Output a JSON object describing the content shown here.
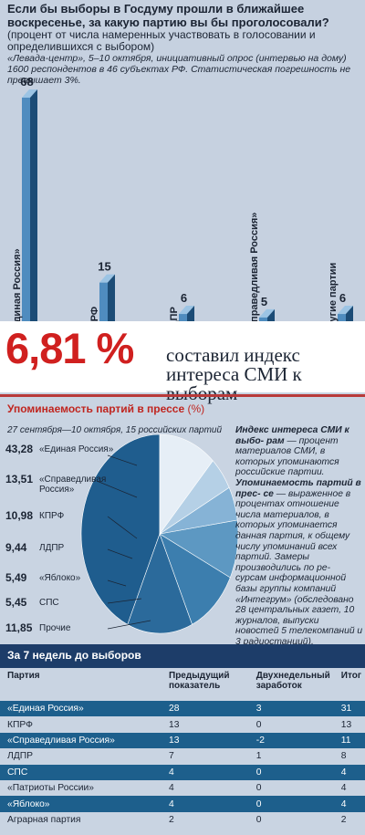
{
  "poll": {
    "question": "Если бы выборы в Госдуму прошли в ближайшее воскресенье, за какую партию вы бы проголосовали?",
    "subtitle": "(процент от числа намеренных участвовать в голосовании и определившихся с выбором)",
    "note": "«Левада-центр», 5–10 октября, инициативный опрос (интервью на дому) 1600 респондентов в 46 субъектах РФ. Статистическая погрешность не превышает 3%."
  },
  "chart_data": [
    {
      "type": "bar",
      "categories": [
        "«Единая Россия»",
        "КПРФ",
        "ЛДПР",
        "«Справедливая Россия»",
        "Другие партии"
      ],
      "values": [
        68,
        15,
        6,
        5,
        6
      ],
      "title": "Если бы выборы в Госдуму прошли в ближайшее воскресенье, за какую партию вы бы проголосовали?"
    },
    {
      "type": "pie",
      "title": "Упоминаемость партий в прессе",
      "unit": "(%)",
      "subtitle": "27 сентября—10 октября, 15 российских партий",
      "categories": [
        "«Единая Россия»",
        "«Справедливая Россия»",
        "КПРФ",
        "ЛДПР",
        "«Яблоко»",
        "СПС",
        "Прочие"
      ],
      "values_text": [
        "43,28",
        "13,51",
        "10,98",
        "9,44",
        "5,49",
        "5,45",
        "11,85"
      ],
      "values": [
        43.28,
        13.51,
        10.98,
        9.44,
        5.49,
        5.45,
        11.85
      ],
      "colors": [
        "#1f5d8e",
        "#2b6a9b",
        "#3c7eae",
        "#5d98c2",
        "#86b3d6",
        "#b5d0e6",
        "#e6eef6"
      ]
    },
    {
      "type": "table",
      "title": "За 7 недель до выборов",
      "columns": [
        "Партия",
        "Предыдущий показатель",
        "Двухнедельный заработок",
        "Итог"
      ],
      "rows": [
        [
          "«Единая Россия»",
          "28",
          "3",
          "31"
        ],
        [
          "КПРФ",
          "13",
          "0",
          "13"
        ],
        [
          "«Справедливая Россия»",
          "13",
          "-2",
          "11"
        ],
        [
          "ЛДПР",
          "7",
          "1",
          "8"
        ],
        [
          "СПС",
          "4",
          "0",
          "4"
        ],
        [
          "«Патриоты России»",
          "4",
          "0",
          "4"
        ],
        [
          "«Яблоко»",
          "4",
          "0",
          "4"
        ],
        [
          "Аграрная партия",
          "2",
          "0",
          "2"
        ]
      ],
      "highlighted_rows": [
        0,
        2,
        4,
        6
      ]
    }
  ],
  "banner": {
    "number": "6,81 %",
    "text": "составил индекс интереса СМИ к выборам"
  },
  "press": {
    "title": "Упоминаемость партий в прессе",
    "unit": "(%)",
    "period": "27 сентября—10 октября, 15 российских партий"
  },
  "definitions": {
    "term1": "Индекс интереса СМИ к выбо- рам",
    "text1": " — процент материалов СМИ, в которых упоминаются российские партии.",
    "term2": "Упоминаемость партий в прес- се",
    "text2": " — выраженное в процентах отношение числа материалов, в которых упоминается данная партия, к общему числу упоминаний всех партий. Замеры производились по ре- сурсам информационной базы группы компаний «Интегрум» (обследовано 28 центральных газет, 10 журналов, выпуски новостей 5 телекомпаний и 3 радиостанций)."
  },
  "weeks": {
    "title": "За 7 недель до выборов",
    "headers": [
      "Партия",
      "Предыдущий показатель",
      "Двухнедельный заработок",
      "Итог"
    ]
  }
}
